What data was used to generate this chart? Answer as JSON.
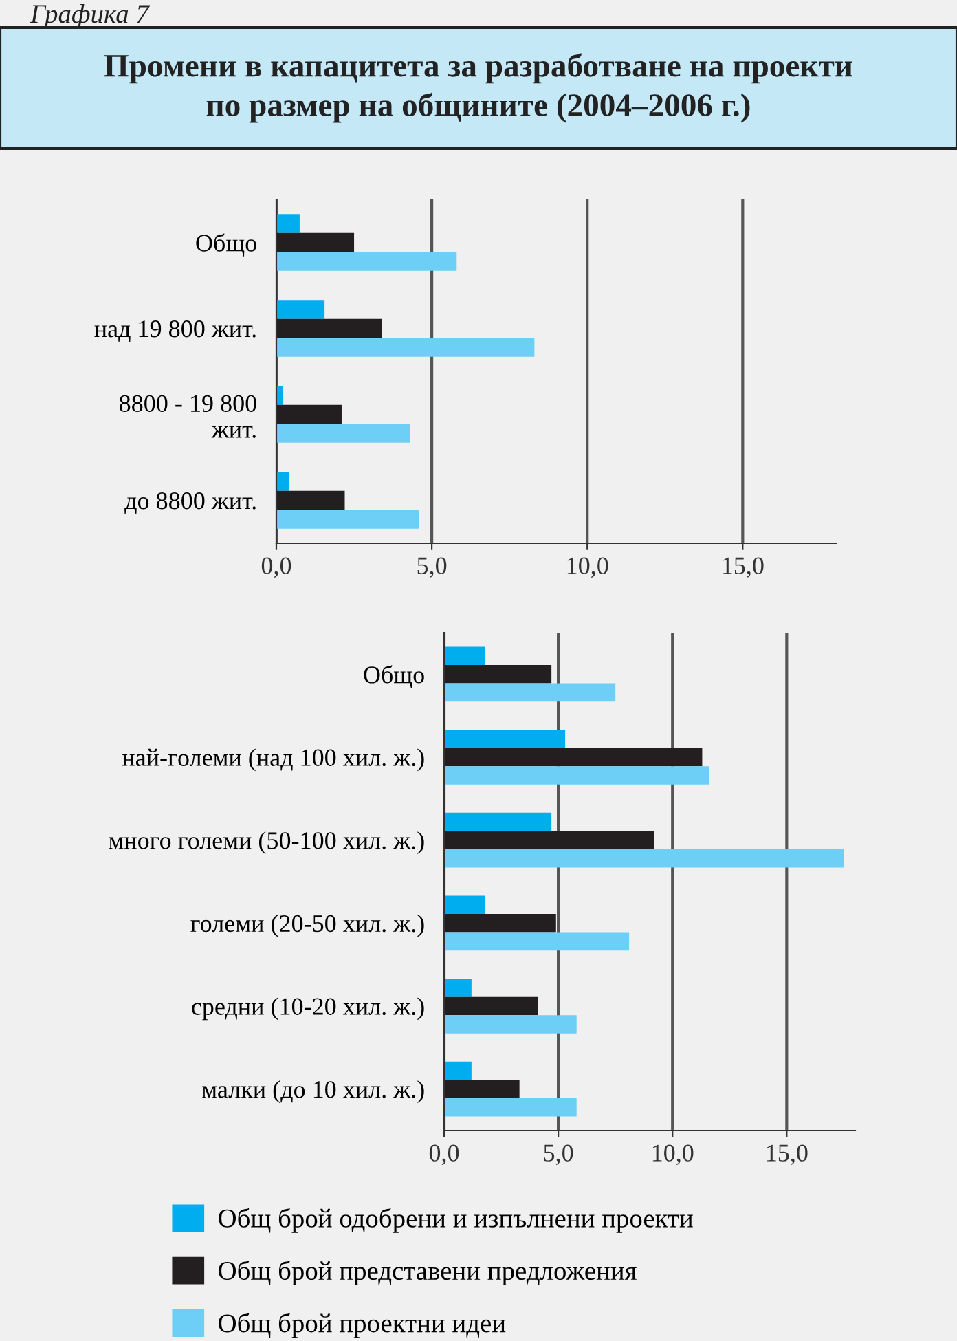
{
  "chart_data": [
    {
      "type": "bar",
      "orientation": "horizontal",
      "title": "Промени в капацитета за разработване на проекти\nпо размер на общините (2004–2006 г.)",
      "annotations": [
        "Графика 7"
      ],
      "categories": [
        "Общо",
        "над 19 800 жит.",
        "8800 - 19 800\nжит.",
        "до 8800 жит."
      ],
      "series": [
        {
          "color": "#00aeef",
          "values": [
            0.75,
            1.55,
            0.2,
            0.4
          ]
        },
        {
          "color": "#231f20",
          "values": [
            2.5,
            3.4,
            2.1,
            2.2
          ]
        },
        {
          "color": "#6dcff6",
          "values": [
            5.8,
            8.3,
            4.3,
            4.6
          ]
        }
      ],
      "xlim": [
        0,
        18
      ],
      "xticks": [
        {
          "value": 0,
          "label": "0,0"
        },
        {
          "value": 5,
          "label": "5,0"
        },
        {
          "value": 10,
          "label": "10,0"
        },
        {
          "value": 15,
          "label": "15,0"
        }
      ],
      "grid": "x",
      "legend": false
    },
    {
      "type": "bar",
      "orientation": "horizontal",
      "categories": [
        "Общо",
        "най-големи (над 100 хил. ж.)",
        "много големи (50-100 хил. ж.)",
        "големи (20-50 хил. ж.)",
        "средни (10-20 хил. ж.)",
        "малки (до 10 хил. ж.)"
      ],
      "series": [
        {
          "name": "Общ брой одобрени и изпълнени проекти",
          "color": "#00aeef",
          "values": [
            1.8,
            5.3,
            4.7,
            1.8,
            1.2,
            1.2
          ]
        },
        {
          "name": "Общ брой представени предложения",
          "color": "#231f20",
          "values": [
            4.7,
            11.3,
            9.2,
            4.9,
            4.1,
            3.3
          ]
        },
        {
          "name": "Общ брой проектни идеи",
          "color": "#6dcff6",
          "values": [
            7.5,
            11.6,
            17.5,
            8.1,
            5.8,
            5.8
          ]
        }
      ],
      "xlim": [
        0,
        18
      ],
      "xticks": [
        {
          "value": 0,
          "label": "0,0"
        },
        {
          "value": 5,
          "label": "5,0"
        },
        {
          "value": 10,
          "label": "10,0"
        },
        {
          "value": 15,
          "label": "15,0"
        }
      ],
      "grid": "x",
      "legend": "bottom"
    }
  ]
}
